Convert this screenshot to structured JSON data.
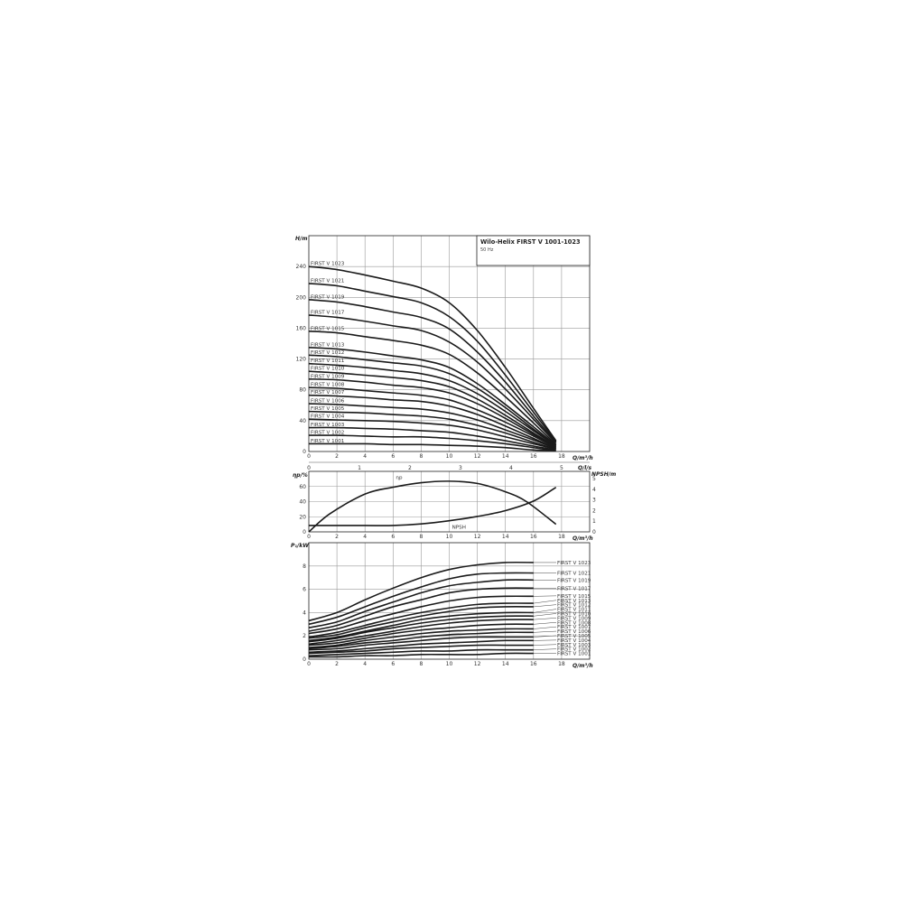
{
  "chart_data": [
    {
      "type": "line",
      "title": "Wilo-Helix FIRST V 1001-1023",
      "subtitle": "50 Hz",
      "xlabel": "Q/m³/h",
      "x2label": "Q/l/s",
      "ylabel": "H/m",
      "xlim": [
        0,
        20
      ],
      "ylim": [
        0,
        280
      ],
      "grid": true,
      "xticks": [
        0,
        2,
        4,
        6,
        8,
        10,
        12,
        14,
        16,
        18
      ],
      "x2ticks": [
        0,
        1,
        2,
        3,
        4,
        5
      ],
      "yticks": [
        0,
        40,
        80,
        120,
        160,
        200,
        240
      ],
      "q": [
        0,
        2,
        4,
        6,
        8,
        10,
        12,
        14,
        16,
        17.6
      ],
      "series": [
        {
          "name": "FIRST V 1023",
          "values": [
            240,
            236,
            229,
            221,
            212,
            193,
            157,
            109,
            56,
            14
          ]
        },
        {
          "name": "FIRST V 1021",
          "values": [
            218,
            215,
            208,
            201,
            193,
            175,
            143,
            99,
            51,
            13
          ]
        },
        {
          "name": "FIRST V 1019",
          "values": [
            197,
            194,
            188,
            181,
            174,
            159,
            129,
            90,
            46,
            12
          ]
        },
        {
          "name": "FIRST V 1017",
          "values": [
            177,
            174,
            169,
            163,
            157,
            142,
            116,
            81,
            42,
            11
          ]
        },
        {
          "name": "FIRST V 1015",
          "values": [
            156,
            154,
            149,
            144,
            138,
            126,
            102,
            71,
            37,
            9
          ]
        },
        {
          "name": "FIRST V 1013",
          "values": [
            135,
            133,
            129,
            124,
            119,
            109,
            88,
            61,
            32,
            8
          ]
        },
        {
          "name": "FIRST V 1012",
          "values": [
            125,
            123,
            119,
            115,
            111,
            101,
            82,
            57,
            29,
            8
          ]
        },
        {
          "name": "FIRST V 1011",
          "values": [
            114,
            112,
            109,
            105,
            101,
            92,
            75,
            52,
            27,
            7
          ]
        },
        {
          "name": "FIRST V 1010",
          "values": [
            104,
            102,
            99,
            96,
            92,
            84,
            68,
            47,
            24,
            6
          ]
        },
        {
          "name": "FIRST V 1009",
          "values": [
            94,
            93,
            90,
            86,
            83,
            76,
            62,
            43,
            22,
            6
          ]
        },
        {
          "name": "FIRST V 1008",
          "values": [
            83,
            82,
            79,
            76,
            73,
            67,
            54,
            38,
            20,
            5
          ]
        },
        {
          "name": "FIRST V 1007",
          "values": [
            73,
            72,
            70,
            67,
            65,
            59,
            48,
            33,
            17,
            4
          ]
        },
        {
          "name": "FIRST V 1006",
          "values": [
            62,
            61,
            59,
            57,
            55,
            50,
            41,
            28,
            15,
            4
          ]
        },
        {
          "name": "FIRST V 1005",
          "values": [
            52,
            51,
            50,
            48,
            46,
            42,
            34,
            24,
            12,
            3
          ]
        },
        {
          "name": "FIRST V 1004",
          "values": [
            42,
            41,
            40,
            39,
            37,
            34,
            28,
            19,
            10,
            3
          ]
        },
        {
          "name": "FIRST V 1003",
          "values": [
            31,
            31,
            30,
            29,
            27,
            25,
            20,
            14,
            7,
            2
          ]
        },
        {
          "name": "FIRST V 1002",
          "values": [
            21,
            21,
            20,
            19,
            19,
            17,
            14,
            10,
            5,
            1
          ]
        },
        {
          "name": "FIRST V 1001",
          "values": [
            10,
            10,
            10,
            9,
            9,
            8,
            7,
            5,
            2,
            1
          ]
        }
      ]
    },
    {
      "type": "line",
      "xlabel": "Q/m³/h",
      "ylabel": "ηp/%",
      "y2label": "NPSH/m",
      "xlim": [
        0,
        20
      ],
      "ylim": [
        0,
        80
      ],
      "y2lim": [
        0,
        5.7
      ],
      "grid": true,
      "xticks": [
        0,
        2,
        4,
        6,
        8,
        10,
        12,
        14,
        16,
        18
      ],
      "yticks": [
        0,
        20,
        40,
        60
      ],
      "y2ticks": [
        0,
        1,
        2,
        3,
        4,
        5
      ],
      "series": [
        {
          "name": "ηp",
          "axis": "left",
          "q": [
            0,
            1.5,
            4,
            6,
            8,
            10,
            12,
            14,
            15.5,
            17.6
          ],
          "values": [
            0,
            24,
            50,
            59,
            65,
            67,
            64,
            53,
            40,
            10
          ]
        },
        {
          "name": "NPSH",
          "axis": "right",
          "q": [
            0,
            1.5,
            4,
            6,
            8,
            10,
            12,
            14,
            16,
            17.6
          ],
          "values": [
            0.6,
            0.6,
            0.6,
            0.6,
            0.75,
            1.05,
            1.45,
            2.0,
            2.9,
            4.2
          ]
        }
      ]
    },
    {
      "type": "line",
      "xlabel": "Q/m³/h",
      "ylabel": "P₁/kW",
      "xlim": [
        0,
        20
      ],
      "ylim": [
        0,
        10
      ],
      "grid": true,
      "xticks": [
        0,
        2,
        4,
        6,
        8,
        10,
        12,
        14,
        16,
        18
      ],
      "yticks": [
        0,
        2,
        4,
        6,
        8
      ],
      "q": [
        0,
        2,
        4,
        6,
        8,
        10,
        12,
        14,
        16
      ],
      "series": [
        {
          "name": "FIRST V 1023",
          "values": [
            3.3,
            4.0,
            5.1,
            6.1,
            7.0,
            7.7,
            8.1,
            8.3,
            8.3
          ]
        },
        {
          "name": "FIRST V 1021",
          "values": [
            3.0,
            3.6,
            4.5,
            5.4,
            6.2,
            6.9,
            7.3,
            7.4,
            7.4
          ]
        },
        {
          "name": "FIRST V 1019",
          "values": [
            2.7,
            3.2,
            4.1,
            4.9,
            5.7,
            6.3,
            6.6,
            6.8,
            6.8
          ]
        },
        {
          "name": "FIRST V 1017",
          "values": [
            2.4,
            2.9,
            3.7,
            4.5,
            5.1,
            5.7,
            6.0,
            6.1,
            6.1
          ]
        },
        {
          "name": "FIRST V 1015",
          "values": [
            2.2,
            2.6,
            3.3,
            3.9,
            4.5,
            5.0,
            5.3,
            5.4,
            5.4
          ]
        },
        {
          "name": "FIRST V 1013",
          "values": [
            1.9,
            2.3,
            2.9,
            3.5,
            4.0,
            4.4,
            4.7,
            4.8,
            4.8
          ]
        },
        {
          "name": "FIRST V 1012",
          "values": [
            1.8,
            2.1,
            2.7,
            3.2,
            3.7,
            4.1,
            4.4,
            4.5,
            4.5
          ]
        },
        {
          "name": "FIRST V 1011",
          "values": [
            1.6,
            1.9,
            2.4,
            2.9,
            3.4,
            3.7,
            3.9,
            4.0,
            4.0
          ]
        },
        {
          "name": "FIRST V 1010",
          "values": [
            1.5,
            1.8,
            2.3,
            2.7,
            3.1,
            3.4,
            3.6,
            3.7,
            3.7
          ]
        },
        {
          "name": "FIRST V 1009",
          "values": [
            1.3,
            1.6,
            2.0,
            2.4,
            2.8,
            3.1,
            3.3,
            3.4,
            3.4
          ]
        },
        {
          "name": "FIRST V 1008",
          "values": [
            1.2,
            1.4,
            1.8,
            2.2,
            2.5,
            2.7,
            2.9,
            3.0,
            3.0
          ]
        },
        {
          "name": "FIRST V 1007",
          "values": [
            1.0,
            1.2,
            1.6,
            1.9,
            2.2,
            2.4,
            2.5,
            2.6,
            2.6
          ]
        },
        {
          "name": "FIRST V 1006",
          "values": [
            0.9,
            1.1,
            1.4,
            1.6,
            1.9,
            2.1,
            2.2,
            2.3,
            2.3
          ]
        },
        {
          "name": "FIRST V 1005",
          "values": [
            0.8,
            0.9,
            1.2,
            1.4,
            1.6,
            1.8,
            1.9,
            1.9,
            1.9
          ]
        },
        {
          "name": "FIRST V 1004",
          "values": [
            0.6,
            0.7,
            0.9,
            1.1,
            1.3,
            1.4,
            1.5,
            1.6,
            1.6
          ]
        },
        {
          "name": "FIRST V 1003",
          "values": [
            0.5,
            0.6,
            0.7,
            0.9,
            1.0,
            1.1,
            1.2,
            1.2,
            1.2
          ]
        },
        {
          "name": "FIRST V 1002",
          "values": [
            0.3,
            0.4,
            0.5,
            0.6,
            0.7,
            0.7,
            0.8,
            0.8,
            0.8
          ]
        },
        {
          "name": "FIRST V 1001",
          "values": [
            0.2,
            0.2,
            0.3,
            0.3,
            0.4,
            0.4,
            0.4,
            0.5,
            0.5
          ]
        }
      ]
    }
  ]
}
